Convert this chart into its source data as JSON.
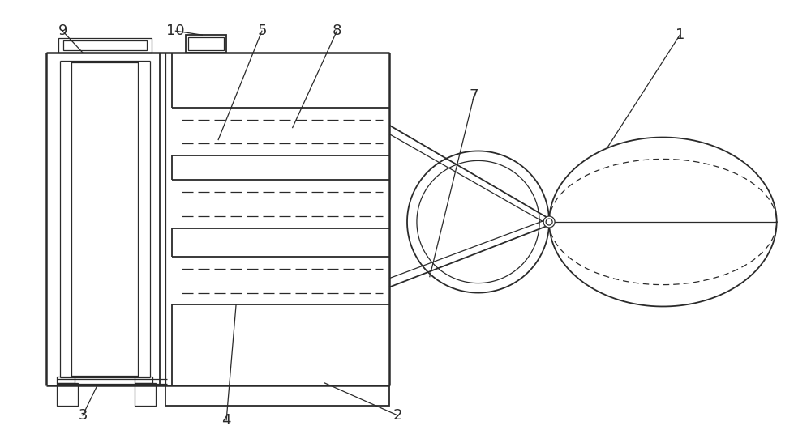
{
  "bg_color": "#ffffff",
  "line_color": "#2a2a2a",
  "figsize": [
    10.0,
    5.52
  ],
  "dpi": 100,
  "lw_thick": 1.8,
  "lw_med": 1.3,
  "lw_thin": 0.9
}
